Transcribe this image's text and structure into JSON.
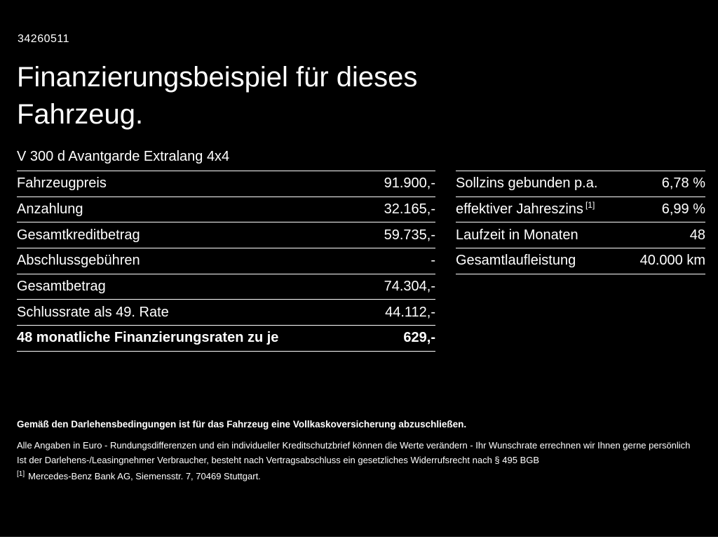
{
  "page": {
    "doc_id": "34260511",
    "title": "Finanzierungsbeispiel für dieses Fahrzeug.",
    "vehicle_name": "V 300 d Avantgarde Extralang 4x4"
  },
  "colors": {
    "background": "#000000",
    "text": "#ffffff",
    "divider": "#ffffff"
  },
  "left_table": {
    "rows": [
      {
        "label": "Fahrzeugpreis",
        "value": "91.900,-"
      },
      {
        "label": "Anzahlung",
        "value": "32.165,-"
      },
      {
        "label": "Gesamtkreditbetrag",
        "value": "59.735,-"
      },
      {
        "label": "Abschlussgebühren",
        "value": "-"
      },
      {
        "label": "Gesamtbetrag",
        "value": "74.304,-"
      },
      {
        "label": "Schlussrate als 49. Rate",
        "value": "44.112,-"
      },
      {
        "label": "48 monatliche Finanzierungsraten zu je",
        "value": "629,-"
      }
    ]
  },
  "right_table": {
    "rows": [
      {
        "label": "Sollzins gebunden p.a.",
        "value": "6,78 %"
      },
      {
        "label": "effektiver Jahreszins",
        "label_sup": "[1]",
        "value": "6,99 %"
      },
      {
        "label": "Laufzeit in Monaten",
        "value": "48"
      },
      {
        "label": "Gesamtlaufleistung",
        "value": "40.000 km"
      }
    ]
  },
  "footer": {
    "line1": "Gemäß den Darlehensbedingungen ist für das Fahrzeug eine Vollkaskoversicherung abzuschließen.",
    "line2": "Alle Angaben in Euro - Rundungsdifferenzen und ein individueller Kreditschutzbrief können die Werte verändern - Ihr Wunschrate errechnen wir Ihnen gerne persönlich",
    "line3": "Ist der Darlehens-/Leasingnehmer Verbraucher, besteht nach Vertragsabschluss ein gesetzliches Widerrufsrecht nach § 495 BGB",
    "footnote_marker": "[1]",
    "footnote": "Mercedes-Benz Bank AG, Siemensstr. 7, 70469 Stuttgart."
  }
}
